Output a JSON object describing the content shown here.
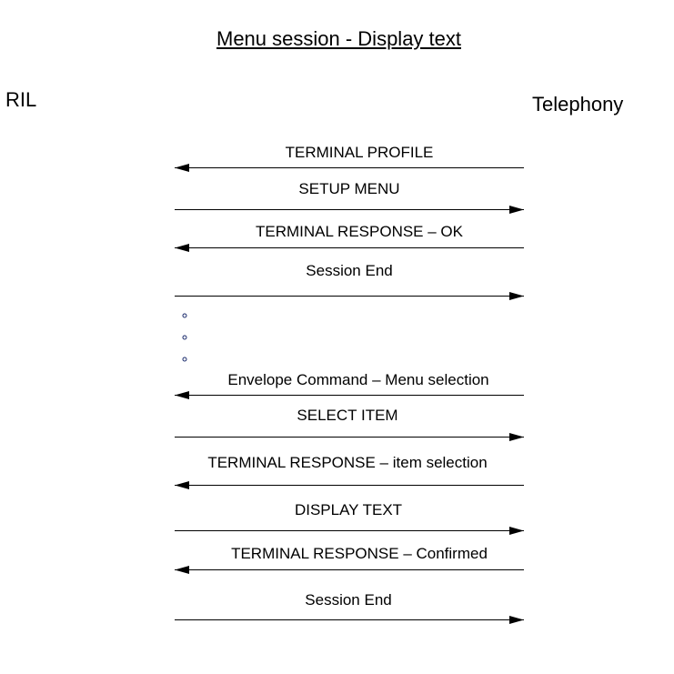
{
  "title": "Menu session - Display text",
  "actors": {
    "left": "RIL",
    "right": "Telephony"
  },
  "messages": [
    {
      "label": "TERMINAL PROFILE",
      "direction": "to-left"
    },
    {
      "label": "SETUP MENU",
      "direction": "to-right"
    },
    {
      "label": "TERMINAL RESPONSE – OK",
      "direction": "to-left"
    },
    {
      "label": "Session End",
      "direction": "to-right"
    },
    {
      "label": "Envelope Command – Menu selection",
      "direction": "to-left"
    },
    {
      "label": "SELECT ITEM",
      "direction": "to-right"
    },
    {
      "label": "TERMINAL RESPONSE – item selection",
      "direction": "to-left"
    },
    {
      "label": "DISPLAY TEXT",
      "direction": "to-right"
    },
    {
      "label": "TERMINAL RESPONSE – Confirmed",
      "direction": "to-left"
    },
    {
      "label": "Session End",
      "direction": "to-right"
    }
  ],
  "ellipsis_dots": 3,
  "colors": {
    "line": "#000000",
    "dot": "#1a2a6c"
  }
}
